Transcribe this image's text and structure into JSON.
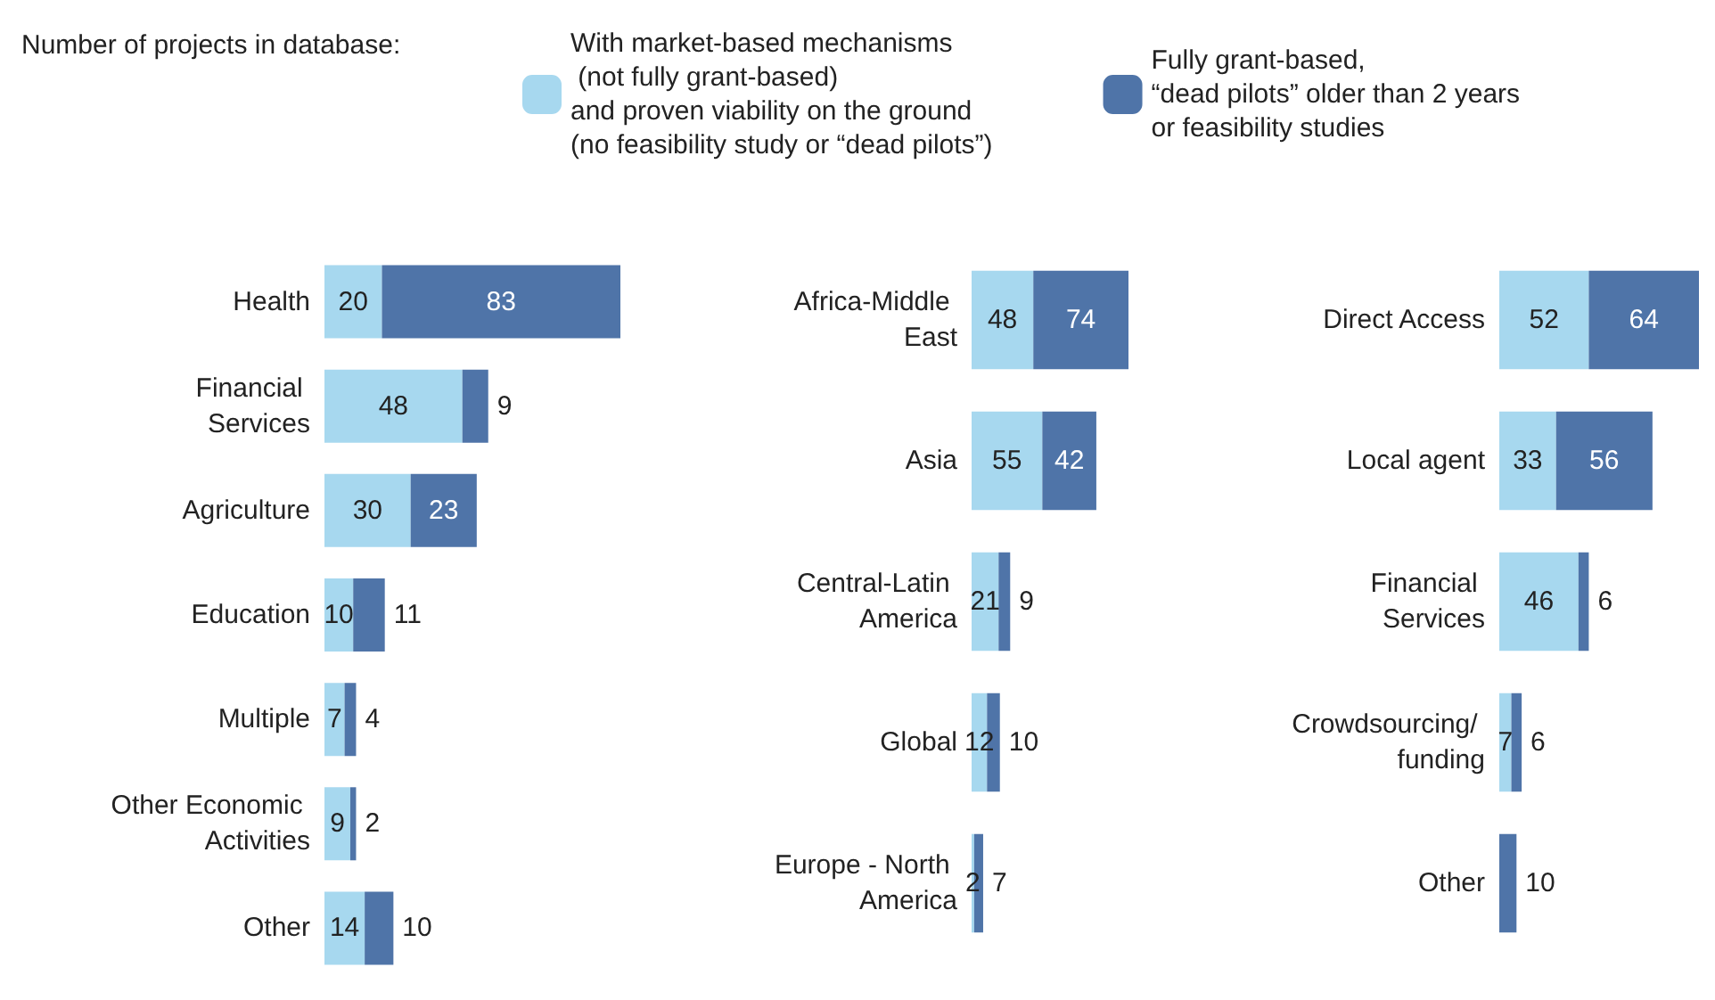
{
  "chart_data": [
    {
      "type": "bar",
      "orientation": "horizontal",
      "stacked": true,
      "legend": "top",
      "legend_title": "Number of projects in database:",
      "categories": [
        "Health",
        "Financial Services",
        "Agriculture",
        "Education",
        "Multiple",
        "Other Economic Activities",
        "Other"
      ],
      "series": [
        {
          "name": "With market-based mechanisms\n (not fully grant-based)\nand proven viability on the ground\n(no feasibility study or “dead pilots”)",
          "color": "#a7d8ef",
          "values": [
            20,
            48,
            30,
            10,
            7,
            9,
            14
          ],
          "value_labels": [
            "20",
            "48",
            "30",
            "10",
            "7",
            "9",
            "14"
          ]
        },
        {
          "name": "Fully grant-based,\n“dead pilots” older than 2 years\nor feasibility studies",
          "color": "#4f74a8",
          "values": [
            83,
            9,
            23,
            11,
            4,
            2,
            10
          ],
          "value_labels": [
            "83",
            "9",
            "23",
            "11",
            "4",
            "2",
            "10"
          ]
        }
      ]
    },
    {
      "type": "bar",
      "orientation": "horizontal",
      "stacked": true,
      "categories": [
        "Africa-Middle East",
        "Asia",
        "Central-Latin America",
        "Global",
        "Europe - North America"
      ],
      "series": [
        {
          "color": "#a7d8ef",
          "values": [
            48,
            55,
            21,
            12,
            2
          ],
          "value_labels": [
            "48",
            "55",
            "21",
            "12",
            "2"
          ]
        },
        {
          "color": "#4f74a8",
          "values": [
            74,
            42,
            9,
            10,
            7
          ],
          "value_labels": [
            "74",
            "42",
            "9",
            "10",
            "7"
          ]
        }
      ]
    },
    {
      "type": "bar",
      "orientation": "horizontal",
      "stacked": true,
      "categories": [
        "Direct Access",
        "Local agent",
        "Financial Services",
        "Crowdsourcing/ funding",
        "Other"
      ],
      "series": [
        {
          "color": "#a7d8ef",
          "values": [
            52,
            33,
            46,
            7,
            0
          ],
          "value_labels": [
            "52",
            "33",
            "46",
            "7",
            null
          ]
        },
        {
          "color": "#4f74a8",
          "values": [
            64,
            56,
            6,
            6,
            10
          ],
          "value_labels": [
            "64",
            "56",
            "6",
            "6",
            "10"
          ]
        }
      ]
    }
  ]
}
